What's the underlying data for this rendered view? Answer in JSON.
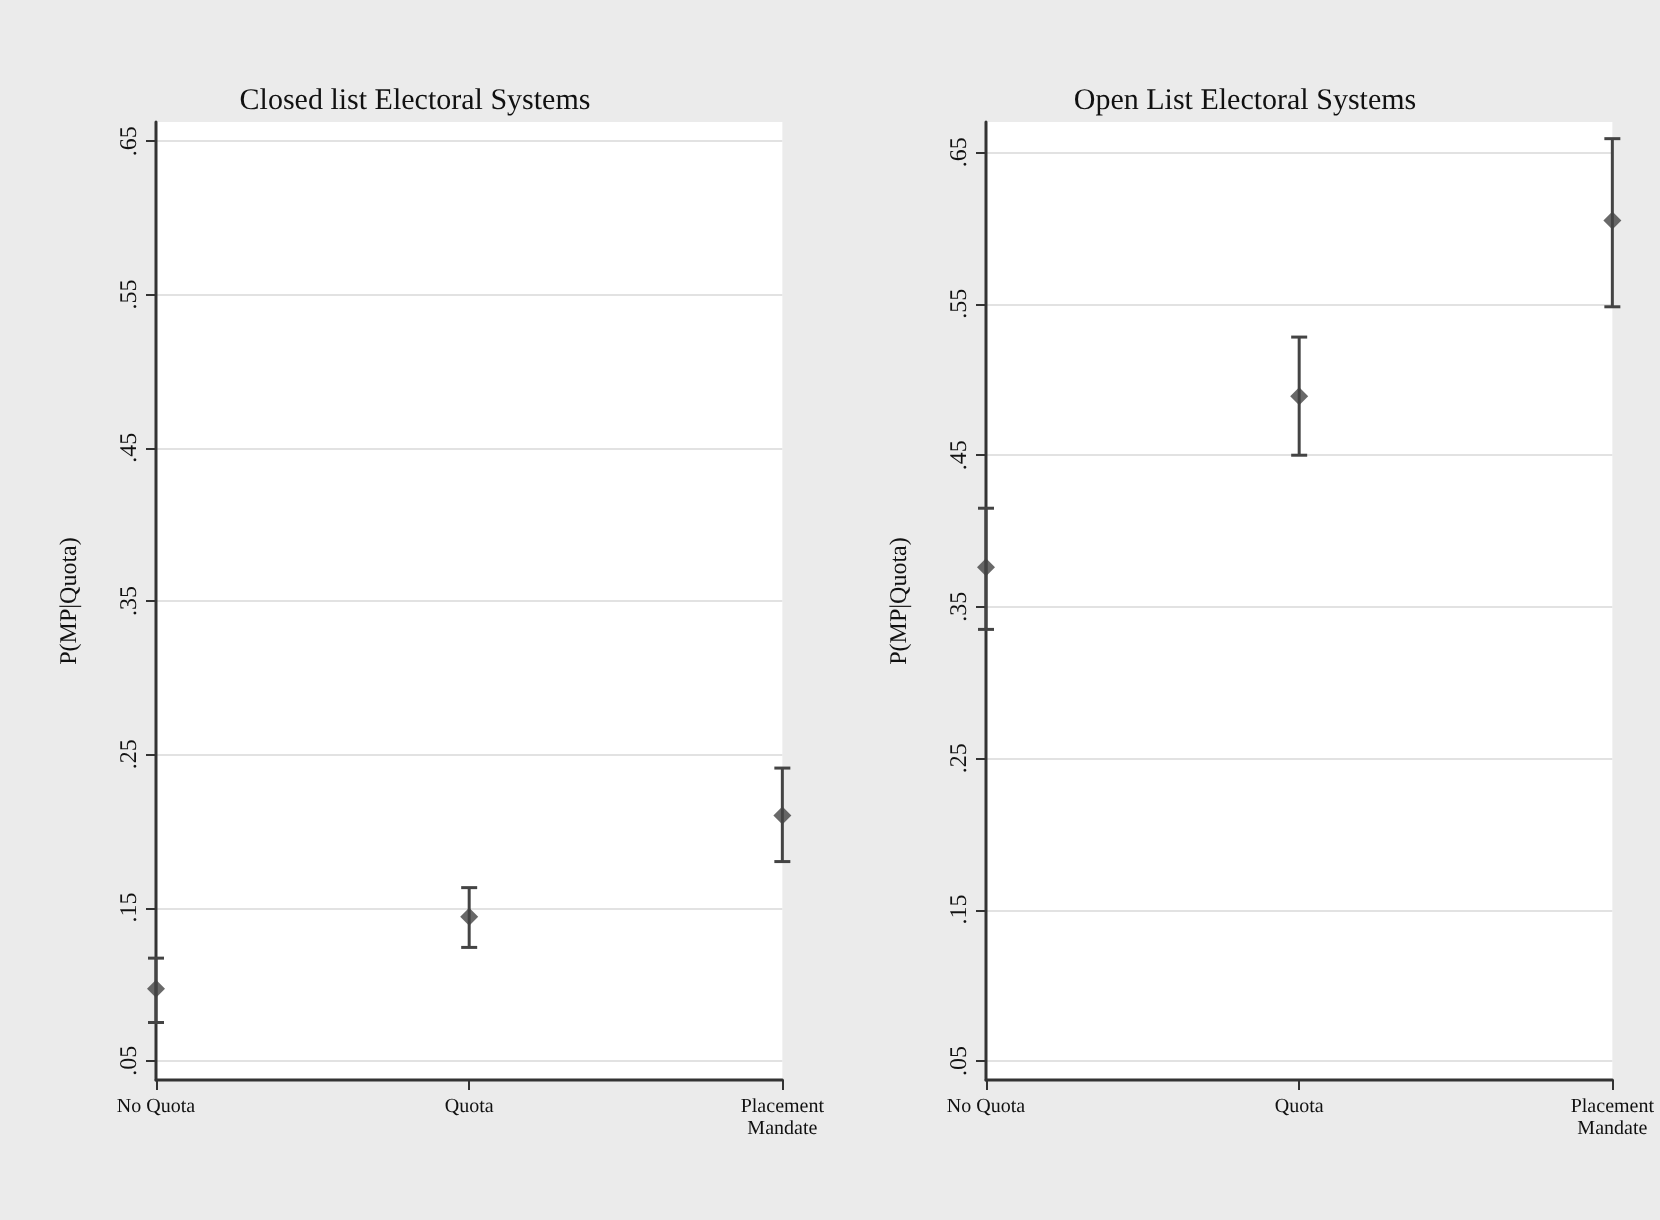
{
  "chart_data": [
    {
      "type": "scatter",
      "title": "Closed list Electoral Systems",
      "ylabel": "P(MP|Quota)",
      "categories": [
        "No Quota",
        "Quota",
        "Placement\nMandate"
      ],
      "series": [
        {
          "color": "#444444",
          "values": [
            0.097,
            0.144,
            0.21
          ],
          "errors": [
            [
              0.075,
              0.117
            ],
            [
              0.124,
              0.163
            ],
            [
              0.18,
              0.241
            ]
          ]
        }
      ],
      "ylim": [
        0.0375,
        0.6625
      ],
      "yticks": [
        {
          "value": 0.05,
          "label": ".05"
        },
        {
          "value": 0.15,
          "label": ".15"
        },
        {
          "value": 0.25,
          "label": ".25"
        },
        {
          "value": 0.35,
          "label": ".35"
        },
        {
          "value": 0.45,
          "label": ".45"
        },
        {
          "value": 0.55,
          "label": ".55"
        },
        {
          "value": 0.65,
          "label": ".65"
        }
      ],
      "grid": "y",
      "marker": "diamond"
    },
    {
      "type": "scatter",
      "title": "Open List Electoral Systems",
      "ylabel": "P(MP|Quota)",
      "categories": [
        "No Quota",
        "Quota",
        "Placement\nMandate"
      ],
      "series": [
        {
          "color": "#444444",
          "values": [
            0.376,
            0.489,
            0.605
          ],
          "errors": [
            [
              0.335,
              0.415
            ],
            [
              0.45,
              0.528
            ],
            [
              0.548,
              0.659
            ]
          ]
        }
      ],
      "ylim": [
        0.0375,
        0.67
      ],
      "yticks": [
        {
          "value": 0.05,
          "label": ".05"
        },
        {
          "value": 0.15,
          "label": ".15"
        },
        {
          "value": 0.25,
          "label": ".25"
        },
        {
          "value": 0.35,
          "label": ".35"
        },
        {
          "value": 0.45,
          "label": ".45"
        },
        {
          "value": 0.55,
          "label": ".55"
        },
        {
          "value": 0.65,
          "label": ".65"
        }
      ],
      "grid": "y",
      "marker": "diamond"
    }
  ]
}
